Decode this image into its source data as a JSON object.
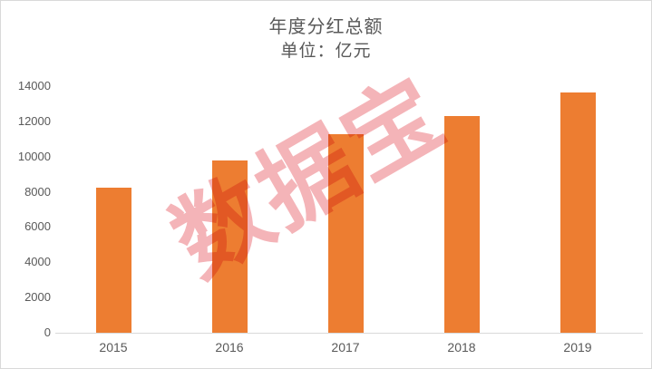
{
  "header": {
    "title": "年度分红总额",
    "subtitle": "单位：亿元"
  },
  "watermark": {
    "text": "数据宝"
  },
  "colors": {
    "bar": "#ED7D31",
    "watermark": "#E23A44",
    "axis_line": "#D9D9D9",
    "label_text": "#595959"
  },
  "chart_data": {
    "type": "bar",
    "title": "年度分红总额",
    "subtitle": "单位：亿元",
    "unit_label": "单位：亿元",
    "categories": [
      "2015",
      "2016",
      "2017",
      "2018",
      "2019"
    ],
    "values": [
      8250,
      9800,
      11250,
      12300,
      13650
    ],
    "xlabel": "",
    "ylabel": "",
    "ylim": [
      0,
      14000
    ],
    "yticks": [
      0,
      2000,
      4000,
      6000,
      8000,
      10000,
      12000,
      14000
    ],
    "grid": false,
    "legend": false,
    "bar_color": "#ED7D31",
    "watermark_text": "数据宝"
  }
}
